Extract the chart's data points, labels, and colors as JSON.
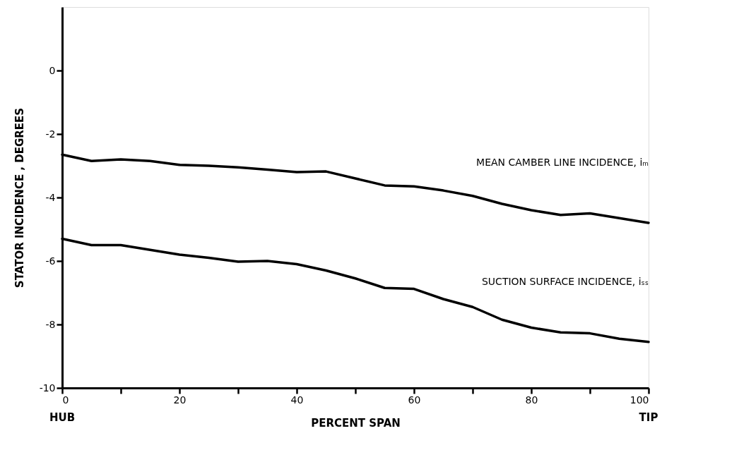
{
  "chart_data": {
    "type": "line",
    "xlabel": "PERCENT SPAN",
    "ylabel": "STATOR INCIDENCE , DEGREES",
    "x": [
      0,
      5,
      10,
      15,
      20,
      25,
      30,
      35,
      40,
      45,
      50,
      55,
      60,
      65,
      70,
      75,
      80,
      85,
      90,
      95,
      100
    ],
    "series": [
      {
        "name": "MEAN CAMBER LINE INCIDENCE, iₘ",
        "color": "#000000",
        "values": [
          -2.65,
          -2.85,
          -2.8,
          -2.85,
          -2.97,
          -3.0,
          -3.05,
          -3.12,
          -3.2,
          -3.18,
          -3.4,
          -3.62,
          -3.65,
          -3.78,
          -3.95,
          -4.2,
          -4.4,
          -4.55,
          -4.5,
          -4.65,
          -4.8
        ]
      },
      {
        "name": "SUCTION SURFACE INCIDENCE, iₛₛ",
        "color": "#000000",
        "values": [
          -5.3,
          -5.5,
          -5.5,
          -5.65,
          -5.8,
          -5.9,
          -6.02,
          -6.0,
          -6.1,
          -6.3,
          -6.55,
          -6.85,
          -6.88,
          -7.2,
          -7.45,
          -7.85,
          -8.1,
          -8.25,
          -8.28,
          -8.45,
          -8.55
        ]
      }
    ],
    "xlim": [
      0,
      100
    ],
    "xticks": [
      0,
      {
        "value": 10,
        "label": null
      },
      20,
      {
        "value": 30,
        "label": null
      },
      40,
      {
        "value": 50,
        "label": null
      },
      60,
      {
        "value": 70,
        "label": null
      },
      80,
      {
        "value": 90,
        "label": null
      },
      100
    ],
    "ylim": [
      -10,
      2
    ],
    "yticks": [
      -10,
      -8,
      -6,
      -4,
      -2,
      0
    ],
    "annotations": [
      "HUB",
      "TIP"
    ],
    "grid": false,
    "legend": false,
    "marker": "none",
    "line_style": "solid"
  }
}
